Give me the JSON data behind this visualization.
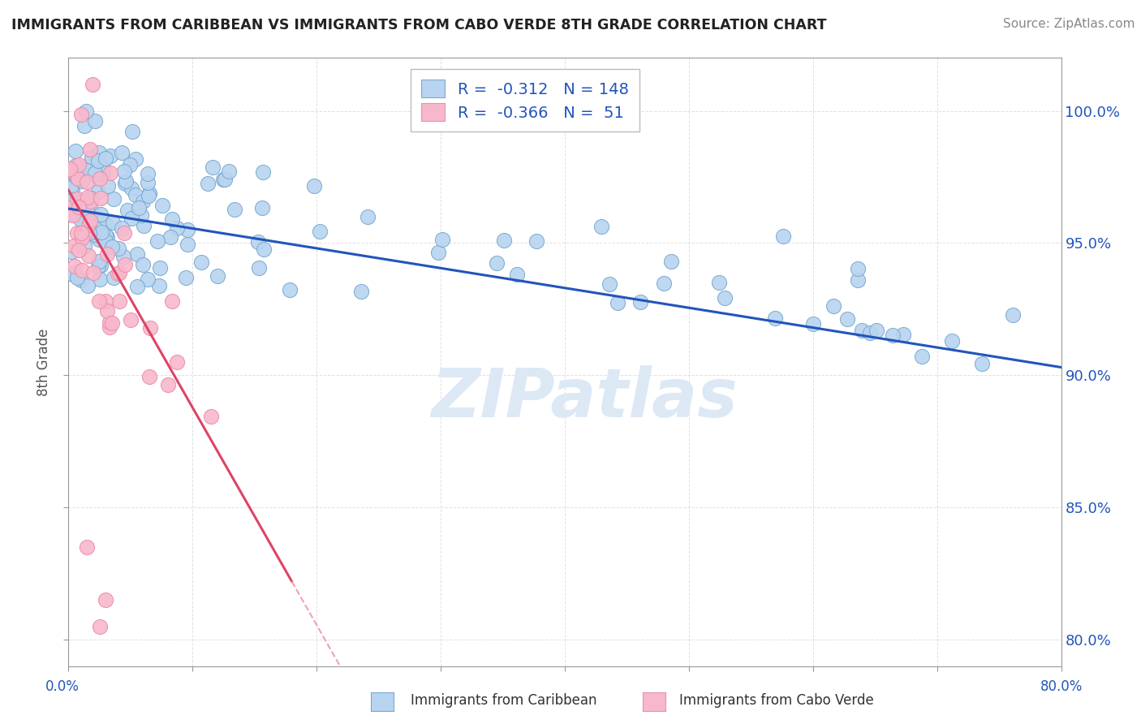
{
  "title": "IMMIGRANTS FROM CARIBBEAN VS IMMIGRANTS FROM CABO VERDE 8TH GRADE CORRELATION CHART",
  "source": "Source: ZipAtlas.com",
  "ylabel": "8th Grade",
  "xlim": [
    0.0,
    80.0
  ],
  "ylim": [
    79.0,
    102.0
  ],
  "yticks": [
    80.0,
    85.0,
    90.0,
    95.0,
    100.0
  ],
  "ytick_labels": [
    "80.0%",
    "85.0%",
    "90.0%",
    "95.0%",
    "100.0%"
  ],
  "series1_name": "Immigrants from Caribbean",
  "series1_color": "#b8d4f0",
  "series1_edge": "#7aaad0",
  "series1_R": -0.312,
  "series1_N": 148,
  "series2_name": "Immigrants from Cabo Verde",
  "series2_color": "#f8b8cc",
  "series2_edge": "#e890aa",
  "series2_R": -0.366,
  "series2_N": 51,
  "trend1_color": "#2255bb",
  "trend2_color": "#dd4466",
  "trend2_dash_color": "#f0a0b8",
  "watermark_color": "#dde8f5",
  "background_color": "#ffffff",
  "legend_edge": "#bbbbbb",
  "legend_text_color": "#2255bb",
  "source_color": "#888888",
  "title_color": "#222222",
  "ylabel_color": "#555555",
  "grid_color": "#cccccc",
  "axis_color": "#999999",
  "bottom_label_color": "#333333",
  "xlim_label_color": "#2255bb"
}
